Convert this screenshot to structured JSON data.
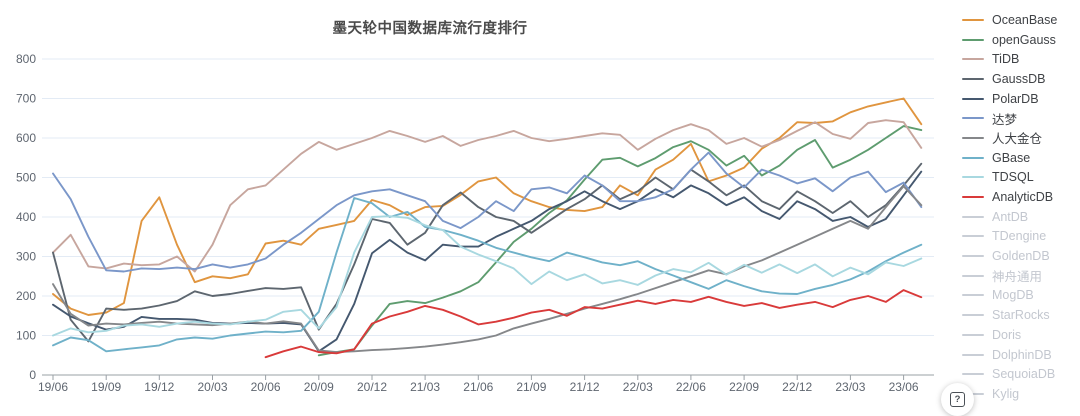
{
  "title": "墨天轮中国数据库流行度排行",
  "help": {
    "icon": "help-icon",
    "glyph": "?"
  },
  "chart_data": {
    "type": "line",
    "title": "墨天轮中国数据库流行度排行",
    "xlabel": "",
    "ylabel": "",
    "ylim": [
      0,
      800
    ],
    "y_ticks": [
      0,
      100,
      200,
      300,
      400,
      500,
      600,
      700,
      800
    ],
    "grid": "horizontal",
    "legend_position": "right",
    "x_tick_labels": [
      "19/06",
      "19/09",
      "19/12",
      "20/03",
      "20/06",
      "20/09",
      "20/12",
      "21/03",
      "21/06",
      "21/09",
      "21/12",
      "22/03",
      "22/06",
      "22/09",
      "22/12",
      "23/03",
      "23/06"
    ],
    "months": [
      "19/06",
      "19/07",
      "19/08",
      "19/09",
      "19/10",
      "19/11",
      "19/12",
      "20/01",
      "20/02",
      "20/03",
      "20/04",
      "20/05",
      "20/06",
      "20/07",
      "20/08",
      "20/09",
      "20/10",
      "20/11",
      "20/12",
      "21/01",
      "21/02",
      "21/03",
      "21/04",
      "21/05",
      "21/06",
      "21/07",
      "21/08",
      "21/09",
      "21/10",
      "21/11",
      "21/12",
      "22/01",
      "22/02",
      "22/03",
      "22/04",
      "22/05",
      "22/06",
      "22/07",
      "22/08",
      "22/09",
      "22/10",
      "22/11",
      "22/12",
      "23/01",
      "23/02",
      "23/03",
      "23/04",
      "23/05",
      "23/06",
      "23/07"
    ],
    "series": [
      {
        "name": "OceanBase",
        "color": "#e0953f",
        "active": true,
        "values": [
          205,
          168,
          152,
          158,
          182,
          390,
          450,
          330,
          235,
          250,
          245,
          255,
          333,
          340,
          330,
          370,
          380,
          390,
          443,
          430,
          405,
          425,
          428,
          456,
          490,
          500,
          460,
          440,
          425,
          418,
          415,
          425,
          480,
          455,
          520,
          545,
          585,
          490,
          505,
          525,
          573,
          600,
          640,
          638,
          642,
          665,
          680,
          690,
          700,
          635
        ]
      },
      {
        "name": "openGauss",
        "color": "#5e9c6f",
        "active": true,
        "values": [
          null,
          null,
          null,
          null,
          null,
          null,
          null,
          null,
          null,
          null,
          null,
          null,
          null,
          null,
          null,
          50,
          58,
          65,
          125,
          180,
          187,
          182,
          196,
          212,
          235,
          285,
          337,
          370,
          410,
          442,
          495,
          545,
          550,
          528,
          549,
          577,
          592,
          570,
          530,
          555,
          505,
          530,
          570,
          595,
          525,
          545,
          570,
          600,
          630,
          620
        ]
      },
      {
        "name": "TiDB",
        "color": "#c7a69e",
        "active": true,
        "values": [
          310,
          355,
          275,
          270,
          282,
          278,
          280,
          300,
          262,
          330,
          430,
          470,
          480,
          520,
          560,
          590,
          570,
          585,
          600,
          618,
          605,
          590,
          605,
          580,
          595,
          605,
          618,
          600,
          592,
          598,
          605,
          612,
          608,
          570,
          598,
          620,
          635,
          620,
          585,
          600,
          578,
          595,
          618,
          640,
          610,
          598,
          638,
          645,
          640,
          575
        ]
      },
      {
        "name": "GaussDB",
        "color": "#5d666f",
        "active": true,
        "values": [
          310,
          140,
          85,
          168,
          165,
          168,
          176,
          187,
          212,
          200,
          205,
          213,
          220,
          218,
          222,
          115,
          180,
          280,
          395,
          385,
          330,
          360,
          430,
          462,
          425,
          400,
          390,
          360,
          390,
          420,
          445,
          480,
          445,
          465,
          500,
          470,
          520,
          490,
          455,
          480,
          440,
          420,
          465,
          440,
          410,
          440,
          400,
          430,
          480,
          535
        ]
      },
      {
        "name": "PolarDB",
        "color": "#45586f",
        "active": true,
        "values": [
          178,
          148,
          131,
          115,
          122,
          147,
          142,
          142,
          140,
          132,
          130,
          132,
          130,
          132,
          128,
          60,
          90,
          180,
          308,
          342,
          310,
          290,
          330,
          325,
          325,
          350,
          370,
          390,
          420,
          440,
          465,
          440,
          420,
          440,
          470,
          450,
          480,
          460,
          430,
          450,
          415,
          395,
          440,
          420,
          390,
          400,
          375,
          395,
          455,
          515
        ]
      },
      {
        "name": "达梦",
        "color": "#7b97c9",
        "active": true,
        "values": [
          510,
          445,
          350,
          265,
          262,
          270,
          268,
          272,
          268,
          280,
          272,
          280,
          295,
          330,
          360,
          395,
          430,
          455,
          465,
          470,
          455,
          440,
          390,
          372,
          400,
          440,
          415,
          470,
          475,
          460,
          505,
          480,
          440,
          440,
          450,
          470,
          520,
          563,
          510,
          475,
          520,
          505,
          485,
          498,
          465,
          500,
          515,
          463,
          487,
          425
        ]
      },
      {
        "name": "人大金仓",
        "color": "#85878a",
        "active": true,
        "values": [
          230,
          155,
          125,
          130,
          128,
          132,
          135,
          130,
          128,
          126,
          130,
          135,
          130,
          136,
          130,
          62,
          58,
          60,
          63,
          65,
          68,
          72,
          77,
          83,
          90,
          100,
          118,
          130,
          142,
          155,
          168,
          180,
          192,
          205,
          220,
          235,
          250,
          265,
          255,
          275,
          290,
          310,
          330,
          350,
          370,
          390,
          370,
          425,
          478,
          430
        ]
      },
      {
        "name": "GBase",
        "color": "#6fb1c9",
        "active": true,
        "values": [
          75,
          95,
          88,
          60,
          65,
          70,
          75,
          90,
          95,
          92,
          100,
          105,
          110,
          108,
          112,
          160,
          310,
          448,
          435,
          400,
          413,
          375,
          367,
          355,
          340,
          322,
          310,
          298,
          288,
          310,
          298,
          285,
          278,
          288,
          268,
          252,
          235,
          218,
          240,
          225,
          212,
          206,
          205,
          218,
          228,
          242,
          262,
          288,
          310,
          330
        ]
      },
      {
        "name": "TDSQL",
        "color": "#a8d8e0",
        "active": true,
        "values": [
          100,
          118,
          108,
          112,
          125,
          128,
          122,
          130,
          135,
          130,
          128,
          135,
          140,
          160,
          165,
          118,
          172,
          310,
          400,
          402,
          398,
          379,
          367,
          325,
          305,
          288,
          270,
          230,
          262,
          240,
          255,
          232,
          240,
          228,
          252,
          268,
          260,
          284,
          254,
          279,
          259,
          280,
          258,
          280,
          250,
          272,
          255,
          285,
          276,
          295
        ]
      },
      {
        "name": "AnalyticDB",
        "color": "#d93a3a",
        "active": true,
        "values": [
          null,
          null,
          null,
          null,
          null,
          null,
          null,
          null,
          null,
          null,
          null,
          null,
          45,
          60,
          72,
          58,
          55,
          65,
          130,
          148,
          160,
          175,
          165,
          148,
          128,
          135,
          145,
          158,
          165,
          150,
          172,
          168,
          178,
          188,
          180,
          190,
          185,
          198,
          185,
          175,
          182,
          170,
          178,
          185,
          172,
          190,
          200,
          185,
          215,
          197
        ]
      },
      {
        "name": "AntDB",
        "color": "#c9ced6",
        "active": false,
        "values": null
      },
      {
        "name": "TDengine",
        "color": "#c9ced6",
        "active": false,
        "values": null
      },
      {
        "name": "GoldenDB",
        "color": "#c9ced6",
        "active": false,
        "values": null
      },
      {
        "name": "神舟通用",
        "color": "#c9ced6",
        "active": false,
        "values": null
      },
      {
        "name": "MogDB",
        "color": "#c9ced6",
        "active": false,
        "values": null
      },
      {
        "name": "StarRocks",
        "color": "#c9ced6",
        "active": false,
        "values": null
      },
      {
        "name": "Doris",
        "color": "#c9ced6",
        "active": false,
        "values": null
      },
      {
        "name": "DolphinDB",
        "color": "#c9ced6",
        "active": false,
        "values": null
      },
      {
        "name": "SequoiaDB",
        "color": "#c9ced6",
        "active": false,
        "values": null
      },
      {
        "name": "Kylig",
        "color": "#c9ced6",
        "active": false,
        "values": null
      }
    ],
    "colors": {
      "gridline": "#e3ebf5",
      "axis": "#9aa0a6",
      "tick_label": "#5f6670",
      "title": "#4a4a4a"
    }
  }
}
